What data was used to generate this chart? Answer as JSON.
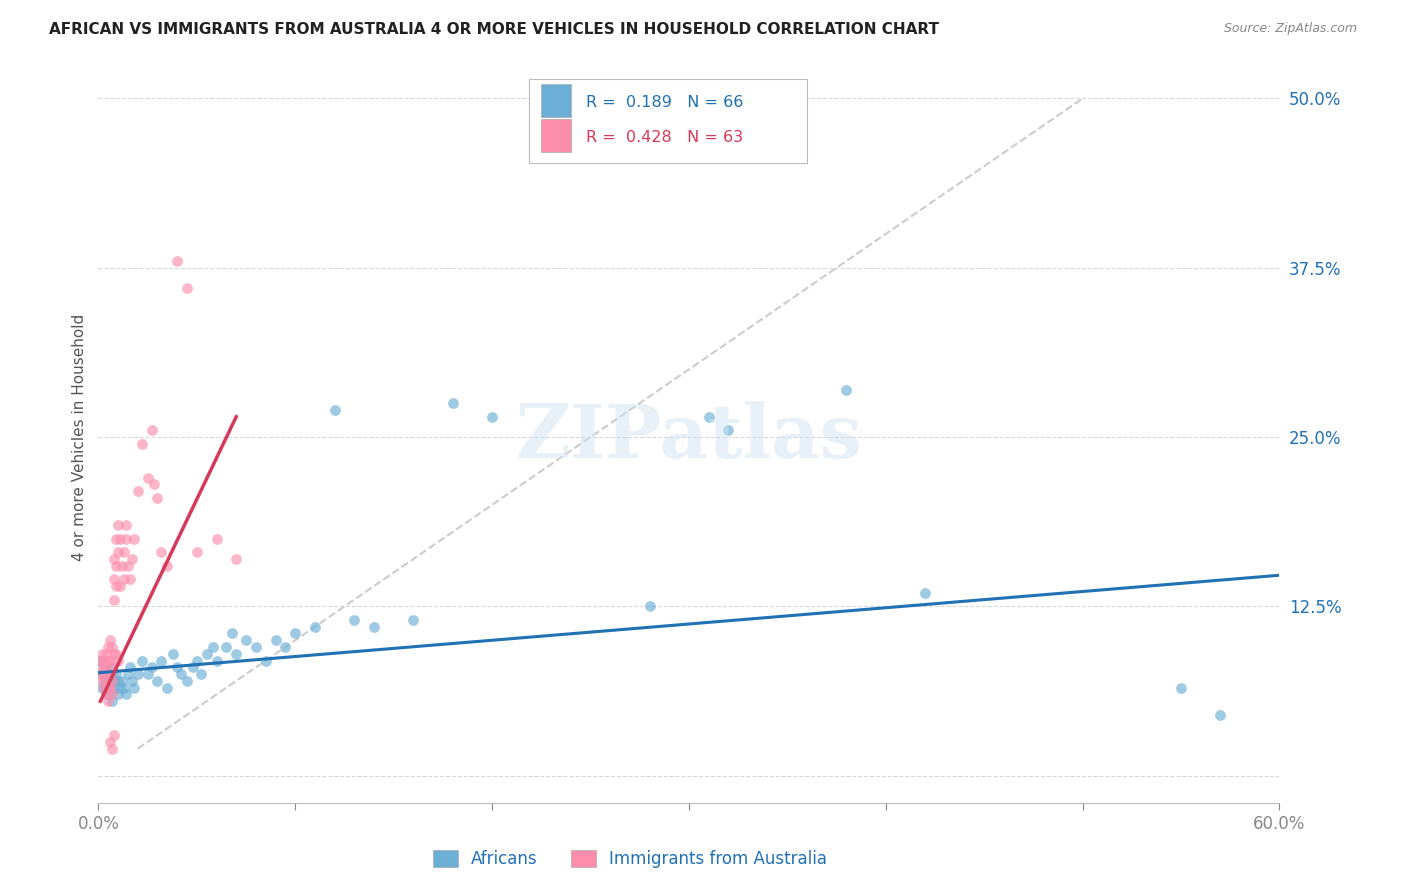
{
  "title": "AFRICAN VS IMMIGRANTS FROM AUSTRALIA 4 OR MORE VEHICLES IN HOUSEHOLD CORRELATION CHART",
  "source": "Source: ZipAtlas.com",
  "ylabel": "4 or more Vehicles in Household",
  "xlim": [
    0.0,
    0.6
  ],
  "ylim": [
    -0.02,
    0.52
  ],
  "yticks_right": [
    0.0,
    0.125,
    0.25,
    0.375,
    0.5
  ],
  "yticklabels_right": [
    "",
    "12.5%",
    "25.0%",
    "37.5%",
    "50.0%"
  ],
  "legend_label1": "Africans",
  "legend_label2": "Immigrants from Australia",
  "r1": "0.189",
  "n1": "66",
  "r2": "0.428",
  "n2": "63",
  "color_blue": "#6baed6",
  "color_pink": "#fc8eac",
  "line_color_blue": "#2171b5",
  "line_color_pink": "#d63a5a",
  "diagonal_color": "#cccccc",
  "blue_scatter": [
    [
      0.001,
      0.085
    ],
    [
      0.002,
      0.075
    ],
    [
      0.002,
      0.065
    ],
    [
      0.003,
      0.08
    ],
    [
      0.003,
      0.07
    ],
    [
      0.004,
      0.075
    ],
    [
      0.004,
      0.065
    ],
    [
      0.005,
      0.07
    ],
    [
      0.005,
      0.06
    ],
    [
      0.006,
      0.08
    ],
    [
      0.006,
      0.065
    ],
    [
      0.007,
      0.075
    ],
    [
      0.007,
      0.055
    ],
    [
      0.008,
      0.07
    ],
    [
      0.008,
      0.065
    ],
    [
      0.009,
      0.075
    ],
    [
      0.01,
      0.07
    ],
    [
      0.01,
      0.06
    ],
    [
      0.011,
      0.065
    ],
    [
      0.012,
      0.07
    ],
    [
      0.013,
      0.065
    ],
    [
      0.014,
      0.06
    ],
    [
      0.015,
      0.075
    ],
    [
      0.016,
      0.08
    ],
    [
      0.017,
      0.07
    ],
    [
      0.018,
      0.065
    ],
    [
      0.02,
      0.075
    ],
    [
      0.022,
      0.085
    ],
    [
      0.025,
      0.075
    ],
    [
      0.027,
      0.08
    ],
    [
      0.03,
      0.07
    ],
    [
      0.032,
      0.085
    ],
    [
      0.035,
      0.065
    ],
    [
      0.038,
      0.09
    ],
    [
      0.04,
      0.08
    ],
    [
      0.042,
      0.075
    ],
    [
      0.045,
      0.07
    ],
    [
      0.048,
      0.08
    ],
    [
      0.05,
      0.085
    ],
    [
      0.052,
      0.075
    ],
    [
      0.055,
      0.09
    ],
    [
      0.058,
      0.095
    ],
    [
      0.06,
      0.085
    ],
    [
      0.065,
      0.095
    ],
    [
      0.068,
      0.105
    ],
    [
      0.07,
      0.09
    ],
    [
      0.075,
      0.1
    ],
    [
      0.08,
      0.095
    ],
    [
      0.085,
      0.085
    ],
    [
      0.09,
      0.1
    ],
    [
      0.095,
      0.095
    ],
    [
      0.1,
      0.105
    ],
    [
      0.11,
      0.11
    ],
    [
      0.12,
      0.27
    ],
    [
      0.13,
      0.115
    ],
    [
      0.14,
      0.11
    ],
    [
      0.16,
      0.115
    ],
    [
      0.18,
      0.275
    ],
    [
      0.2,
      0.265
    ],
    [
      0.28,
      0.125
    ],
    [
      0.31,
      0.265
    ],
    [
      0.32,
      0.255
    ],
    [
      0.38,
      0.285
    ],
    [
      0.42,
      0.135
    ],
    [
      0.55,
      0.065
    ],
    [
      0.57,
      0.045
    ]
  ],
  "pink_scatter": [
    [
      0.001,
      0.085
    ],
    [
      0.001,
      0.075
    ],
    [
      0.002,
      0.09
    ],
    [
      0.002,
      0.08
    ],
    [
      0.002,
      0.07
    ],
    [
      0.003,
      0.085
    ],
    [
      0.003,
      0.075
    ],
    [
      0.003,
      0.065
    ],
    [
      0.004,
      0.09
    ],
    [
      0.004,
      0.08
    ],
    [
      0.004,
      0.07
    ],
    [
      0.004,
      0.06
    ],
    [
      0.005,
      0.095
    ],
    [
      0.005,
      0.085
    ],
    [
      0.005,
      0.075
    ],
    [
      0.005,
      0.065
    ],
    [
      0.005,
      0.055
    ],
    [
      0.006,
      0.1
    ],
    [
      0.006,
      0.085
    ],
    [
      0.006,
      0.075
    ],
    [
      0.006,
      0.065
    ],
    [
      0.006,
      0.025
    ],
    [
      0.007,
      0.095
    ],
    [
      0.007,
      0.08
    ],
    [
      0.007,
      0.07
    ],
    [
      0.007,
      0.06
    ],
    [
      0.007,
      0.02
    ],
    [
      0.008,
      0.16
    ],
    [
      0.008,
      0.145
    ],
    [
      0.008,
      0.13
    ],
    [
      0.008,
      0.09
    ],
    [
      0.008,
      0.03
    ],
    [
      0.009,
      0.175
    ],
    [
      0.009,
      0.155
    ],
    [
      0.009,
      0.14
    ],
    [
      0.009,
      0.09
    ],
    [
      0.01,
      0.185
    ],
    [
      0.01,
      0.165
    ],
    [
      0.01,
      0.085
    ],
    [
      0.011,
      0.175
    ],
    [
      0.011,
      0.14
    ],
    [
      0.012,
      0.155
    ],
    [
      0.013,
      0.165
    ],
    [
      0.013,
      0.145
    ],
    [
      0.014,
      0.185
    ],
    [
      0.014,
      0.175
    ],
    [
      0.015,
      0.155
    ],
    [
      0.016,
      0.145
    ],
    [
      0.017,
      0.16
    ],
    [
      0.018,
      0.175
    ],
    [
      0.02,
      0.21
    ],
    [
      0.022,
      0.245
    ],
    [
      0.025,
      0.22
    ],
    [
      0.027,
      0.255
    ],
    [
      0.028,
      0.215
    ],
    [
      0.03,
      0.205
    ],
    [
      0.032,
      0.165
    ],
    [
      0.035,
      0.155
    ],
    [
      0.04,
      0.38
    ],
    [
      0.045,
      0.36
    ],
    [
      0.05,
      0.165
    ],
    [
      0.06,
      0.175
    ],
    [
      0.07,
      0.16
    ]
  ],
  "watermark": "ZIPatlas",
  "background_color": "#ffffff",
  "grid_color": "#d8d8d8"
}
